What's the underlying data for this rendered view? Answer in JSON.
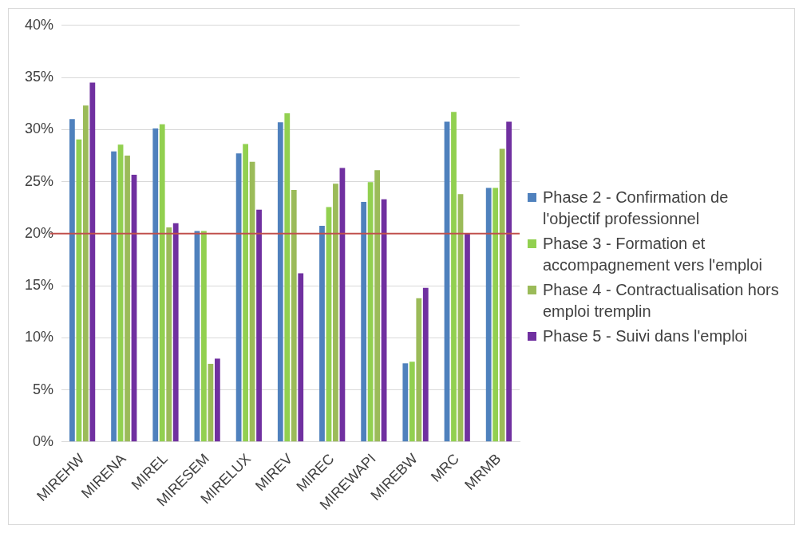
{
  "chart_data": {
    "type": "bar",
    "categories": [
      "MIREHW",
      "MIRENA",
      "MIREL",
      "MIRESEM",
      "MIRELUX",
      "MIREV",
      "MIREC",
      "MIREWAPI",
      "MIREBW",
      "MRC",
      "MRMB"
    ],
    "series": [
      {
        "name": "Phase 2 - Confirmation de l'objectif professionnel",
        "color": "#4f81bd",
        "values": [
          0.31,
          0.279,
          0.301,
          0.2025,
          0.277,
          0.307,
          0.2075,
          0.2305,
          0.0755,
          0.3075,
          0.244
        ]
      },
      {
        "name": "Phase 3 - Formation et accompagnement vers l'emploi",
        "color": "#92d050",
        "values": [
          0.2905,
          0.2855,
          0.305,
          0.2025,
          0.286,
          0.3155,
          0.2255,
          0.2495,
          0.077,
          0.317,
          0.244
        ]
      },
      {
        "name": "Phase 4 - Contractualisation hors emploi tremplin",
        "color": "#9bbb59",
        "values": [
          0.323,
          0.275,
          0.206,
          0.075,
          0.269,
          0.242,
          0.248,
          0.261,
          0.138,
          0.238,
          0.2815
        ]
      },
      {
        "name": "Phase 5 - Suivi dans l'emploi",
        "color": "#7030a0",
        "values": [
          0.345,
          0.2565,
          0.21,
          0.08,
          0.223,
          0.162,
          0.263,
          0.233,
          0.148,
          0.2,
          0.3075
        ]
      }
    ],
    "ylim": [
      0,
      0.4
    ],
    "yticks": [
      {
        "value": 0,
        "label": "0%"
      },
      {
        "value": 0.05,
        "label": "5%"
      },
      {
        "value": 0.1,
        "label": "10%"
      },
      {
        "value": 0.15,
        "label": "15%"
      },
      {
        "value": 0.2,
        "label": "20%"
      },
      {
        "value": 0.25,
        "label": "25%"
      },
      {
        "value": 0.3,
        "label": "30%"
      },
      {
        "value": 0.35,
        "label": "35%"
      },
      {
        "value": 0.4,
        "label": "40%"
      }
    ],
    "grid": "y",
    "legend": "right",
    "ref_lines": [
      {
        "axis": "y",
        "value": 0.2,
        "color": "#c0504d"
      }
    ]
  }
}
